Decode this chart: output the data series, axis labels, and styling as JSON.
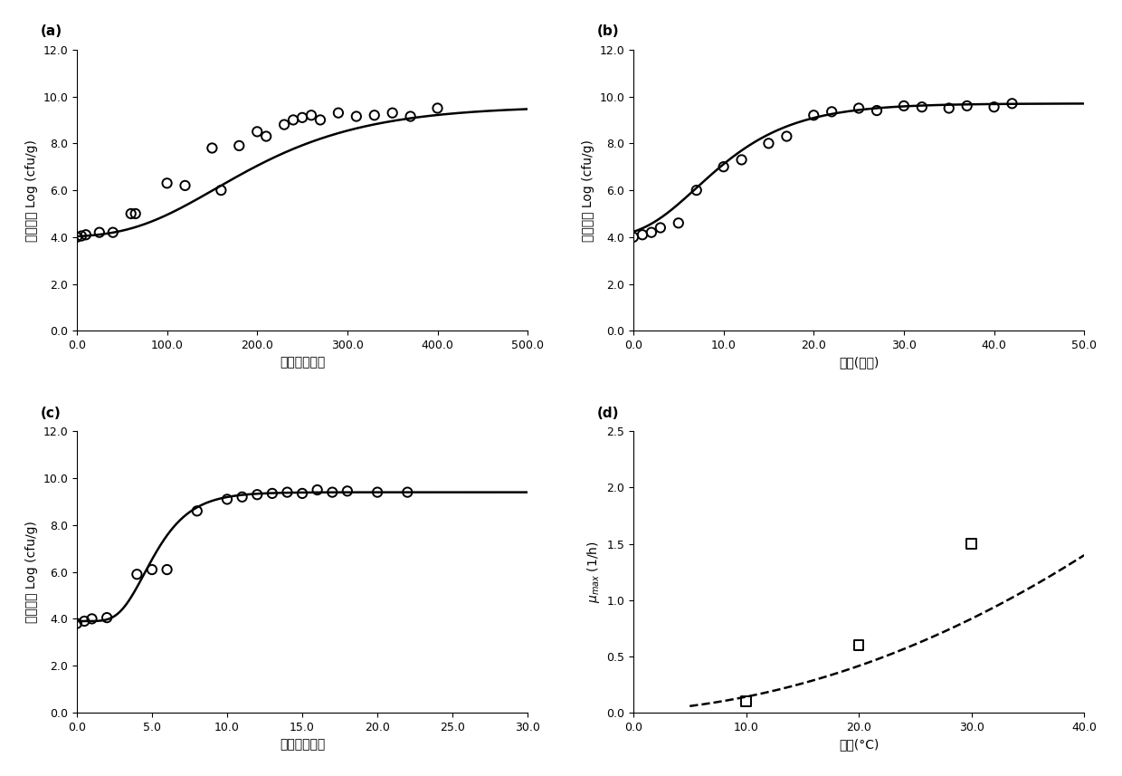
{
  "panel_a": {
    "label": "(a)",
    "scatter_x": [
      0,
      5,
      10,
      25,
      40,
      60,
      65,
      100,
      120,
      150,
      160,
      180,
      200,
      210,
      230,
      240,
      250,
      260,
      270,
      290,
      310,
      330,
      350,
      370,
      400
    ],
    "scatter_y": [
      4.0,
      4.05,
      4.1,
      4.2,
      4.2,
      5.0,
      5.0,
      6.3,
      6.2,
      7.8,
      6.0,
      7.9,
      8.5,
      8.3,
      8.8,
      9.0,
      9.1,
      9.2,
      9.0,
      9.3,
      9.15,
      9.2,
      9.3,
      9.15,
      9.5
    ],
    "N0": 4.0,
    "Nmax": 9.6,
    "mu": 0.022,
    "lag": 60,
    "xlabel": "时间（小时）",
    "ylabel": "菌落浓度 Log (cfu/g)",
    "xlim": [
      0,
      500
    ],
    "ylim": [
      0.0,
      12.0
    ],
    "xticks": [
      0.0,
      100.0,
      200.0,
      300.0,
      400.0,
      500.0
    ],
    "yticks": [
      0.0,
      2.0,
      4.0,
      6.0,
      8.0,
      10.0,
      12.0
    ]
  },
  "panel_b": {
    "label": "(b)",
    "scatter_x": [
      0,
      1,
      2,
      3,
      5,
      7,
      10,
      12,
      15,
      17,
      20,
      22,
      25,
      27,
      30,
      32,
      35,
      37,
      40,
      42
    ],
    "scatter_y": [
      4.0,
      4.1,
      4.2,
      4.4,
      4.6,
      6.0,
      7.0,
      7.3,
      8.0,
      8.3,
      9.2,
      9.35,
      9.5,
      9.4,
      9.6,
      9.55,
      9.5,
      9.6,
      9.55,
      9.7
    ],
    "N0": 4.0,
    "Nmax": 9.7,
    "mu": 0.35,
    "lag": 1.0,
    "xlabel": "时间(小时)",
    "ylabel": "菌落浓度 Log (cfu/g)",
    "xlim": [
      0,
      50
    ],
    "ylim": [
      0.0,
      12.0
    ],
    "xticks": [
      0.0,
      10.0,
      20.0,
      30.0,
      40.0,
      50.0
    ],
    "yticks": [
      0.0,
      2.0,
      4.0,
      6.0,
      8.0,
      10.0,
      12.0
    ]
  },
  "panel_c": {
    "label": "(c)",
    "scatter_x": [
      0,
      0.5,
      1,
      2,
      4,
      5,
      6,
      8,
      10,
      11,
      12,
      13,
      14,
      15,
      16,
      17,
      18,
      20,
      22
    ],
    "scatter_y": [
      3.8,
      3.9,
      4.0,
      4.05,
      5.9,
      6.1,
      6.1,
      8.6,
      9.1,
      9.2,
      9.3,
      9.35,
      9.4,
      9.35,
      9.5,
      9.4,
      9.45,
      9.4,
      9.4
    ],
    "N0": 3.9,
    "Nmax": 9.4,
    "mu": 1.2,
    "lag": 2.8,
    "xlabel": "时间（小时）",
    "ylabel": "菌落浓度 Log (cfu/g)",
    "xlim": [
      0,
      30
    ],
    "ylim": [
      0.0,
      12.0
    ],
    "xticks": [
      0.0,
      5.0,
      10.0,
      15.0,
      20.0,
      25.0,
      30.0
    ],
    "yticks": [
      0.0,
      2.0,
      4.0,
      6.0,
      8.0,
      10.0,
      12.0
    ]
  },
  "panel_d": {
    "label": "(d)",
    "scatter_x": [
      10,
      20,
      30
    ],
    "scatter_y": [
      0.1,
      0.6,
      1.5
    ],
    "xlabel": "温度(°C)",
    "ylabel": "μ_max (1/h)",
    "xlim": [
      0,
      40
    ],
    "ylim": [
      0.0,
      2.5
    ],
    "xticks": [
      0.0,
      10.0,
      20.0,
      30.0,
      40.0
    ],
    "yticks": [
      0.0,
      0.5,
      1.0,
      1.5,
      2.0,
      2.5
    ],
    "T_min": -3.9,
    "b": 0.000726,
    "curve_xstart": 5.0,
    "curve_xend": 40.0
  },
  "background_color": "#ffffff",
  "line_color": "#000000",
  "scatter_color": "#000000",
  "fontsize_label": 10,
  "fontsize_tick": 9,
  "fontsize_panel": 11
}
